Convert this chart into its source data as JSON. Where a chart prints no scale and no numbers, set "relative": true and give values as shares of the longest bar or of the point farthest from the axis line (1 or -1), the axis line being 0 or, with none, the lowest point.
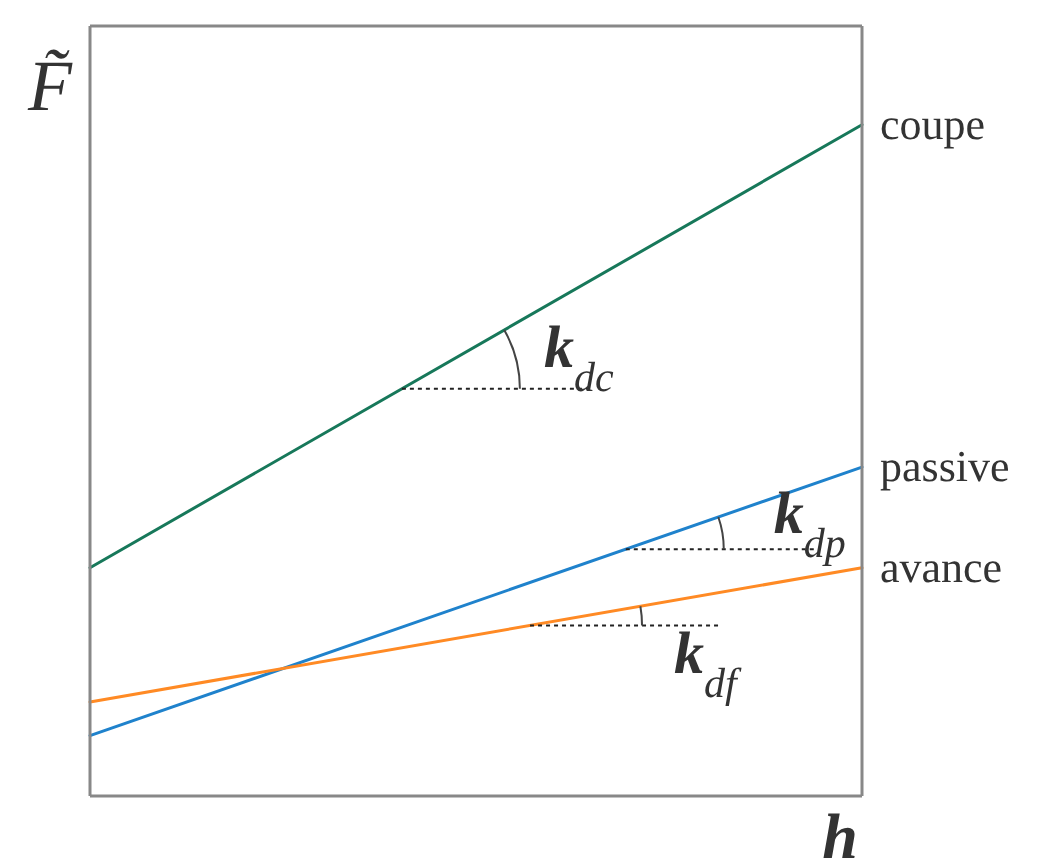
{
  "chart_data": {
    "type": "line",
    "relative": true,
    "xlabel": "h",
    "ylabel": "F̃",
    "categories": [
      null,
      null
    ],
    "series": [
      {
        "name": "coupe",
        "color": "#17785a",
        "values": [
          0.34,
          1
        ]
      },
      {
        "name": "passive",
        "color": "#1f82cc",
        "values": [
          0.09,
          0.49
        ]
      },
      {
        "name": "avance",
        "color": "#ff8a24",
        "values": [
          0.14,
          0.34
        ]
      }
    ],
    "annotations": [
      "k$_{dc}$",
      "k$_{dp}$",
      "k$_{df}$"
    ]
  }
}
